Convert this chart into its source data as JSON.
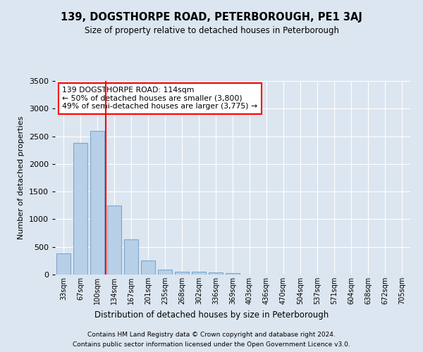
{
  "title": "139, DOGSTHORPE ROAD, PETERBOROUGH, PE1 3AJ",
  "subtitle": "Size of property relative to detached houses in Peterborough",
  "xlabel": "Distribution of detached houses by size in Peterborough",
  "ylabel": "Number of detached properties",
  "bar_labels": [
    "33sqm",
    "67sqm",
    "100sqm",
    "134sqm",
    "167sqm",
    "201sqm",
    "235sqm",
    "268sqm",
    "302sqm",
    "336sqm",
    "369sqm",
    "403sqm",
    "436sqm",
    "470sqm",
    "504sqm",
    "537sqm",
    "571sqm",
    "604sqm",
    "638sqm",
    "672sqm",
    "705sqm"
  ],
  "bar_values": [
    380,
    2380,
    2600,
    1250,
    640,
    260,
    90,
    55,
    55,
    40,
    30,
    0,
    0,
    0,
    0,
    0,
    0,
    0,
    0,
    0,
    0
  ],
  "bar_color": "#b8cfe8",
  "bar_edge_color": "#7aa8cc",
  "bar_edge_width": 0.8,
  "background_color": "#dce6f0",
  "plot_bg_color": "#dce6f0",
  "grid_color": "#ffffff",
  "ylim": [
    0,
    3500
  ],
  "yticks": [
    0,
    500,
    1000,
    1500,
    2000,
    2500,
    3000,
    3500
  ],
  "red_line_x": 2.5,
  "annotation_lines": [
    "139 DOGSTHORPE ROAD: 114sqm",
    "← 50% of detached houses are smaller (3,800)",
    "49% of semi-detached houses are larger (3,775) →"
  ],
  "footer_line1": "Contains HM Land Registry data © Crown copyright and database right 2024.",
  "footer_line2": "Contains public sector information licensed under the Open Government Licence v3.0."
}
